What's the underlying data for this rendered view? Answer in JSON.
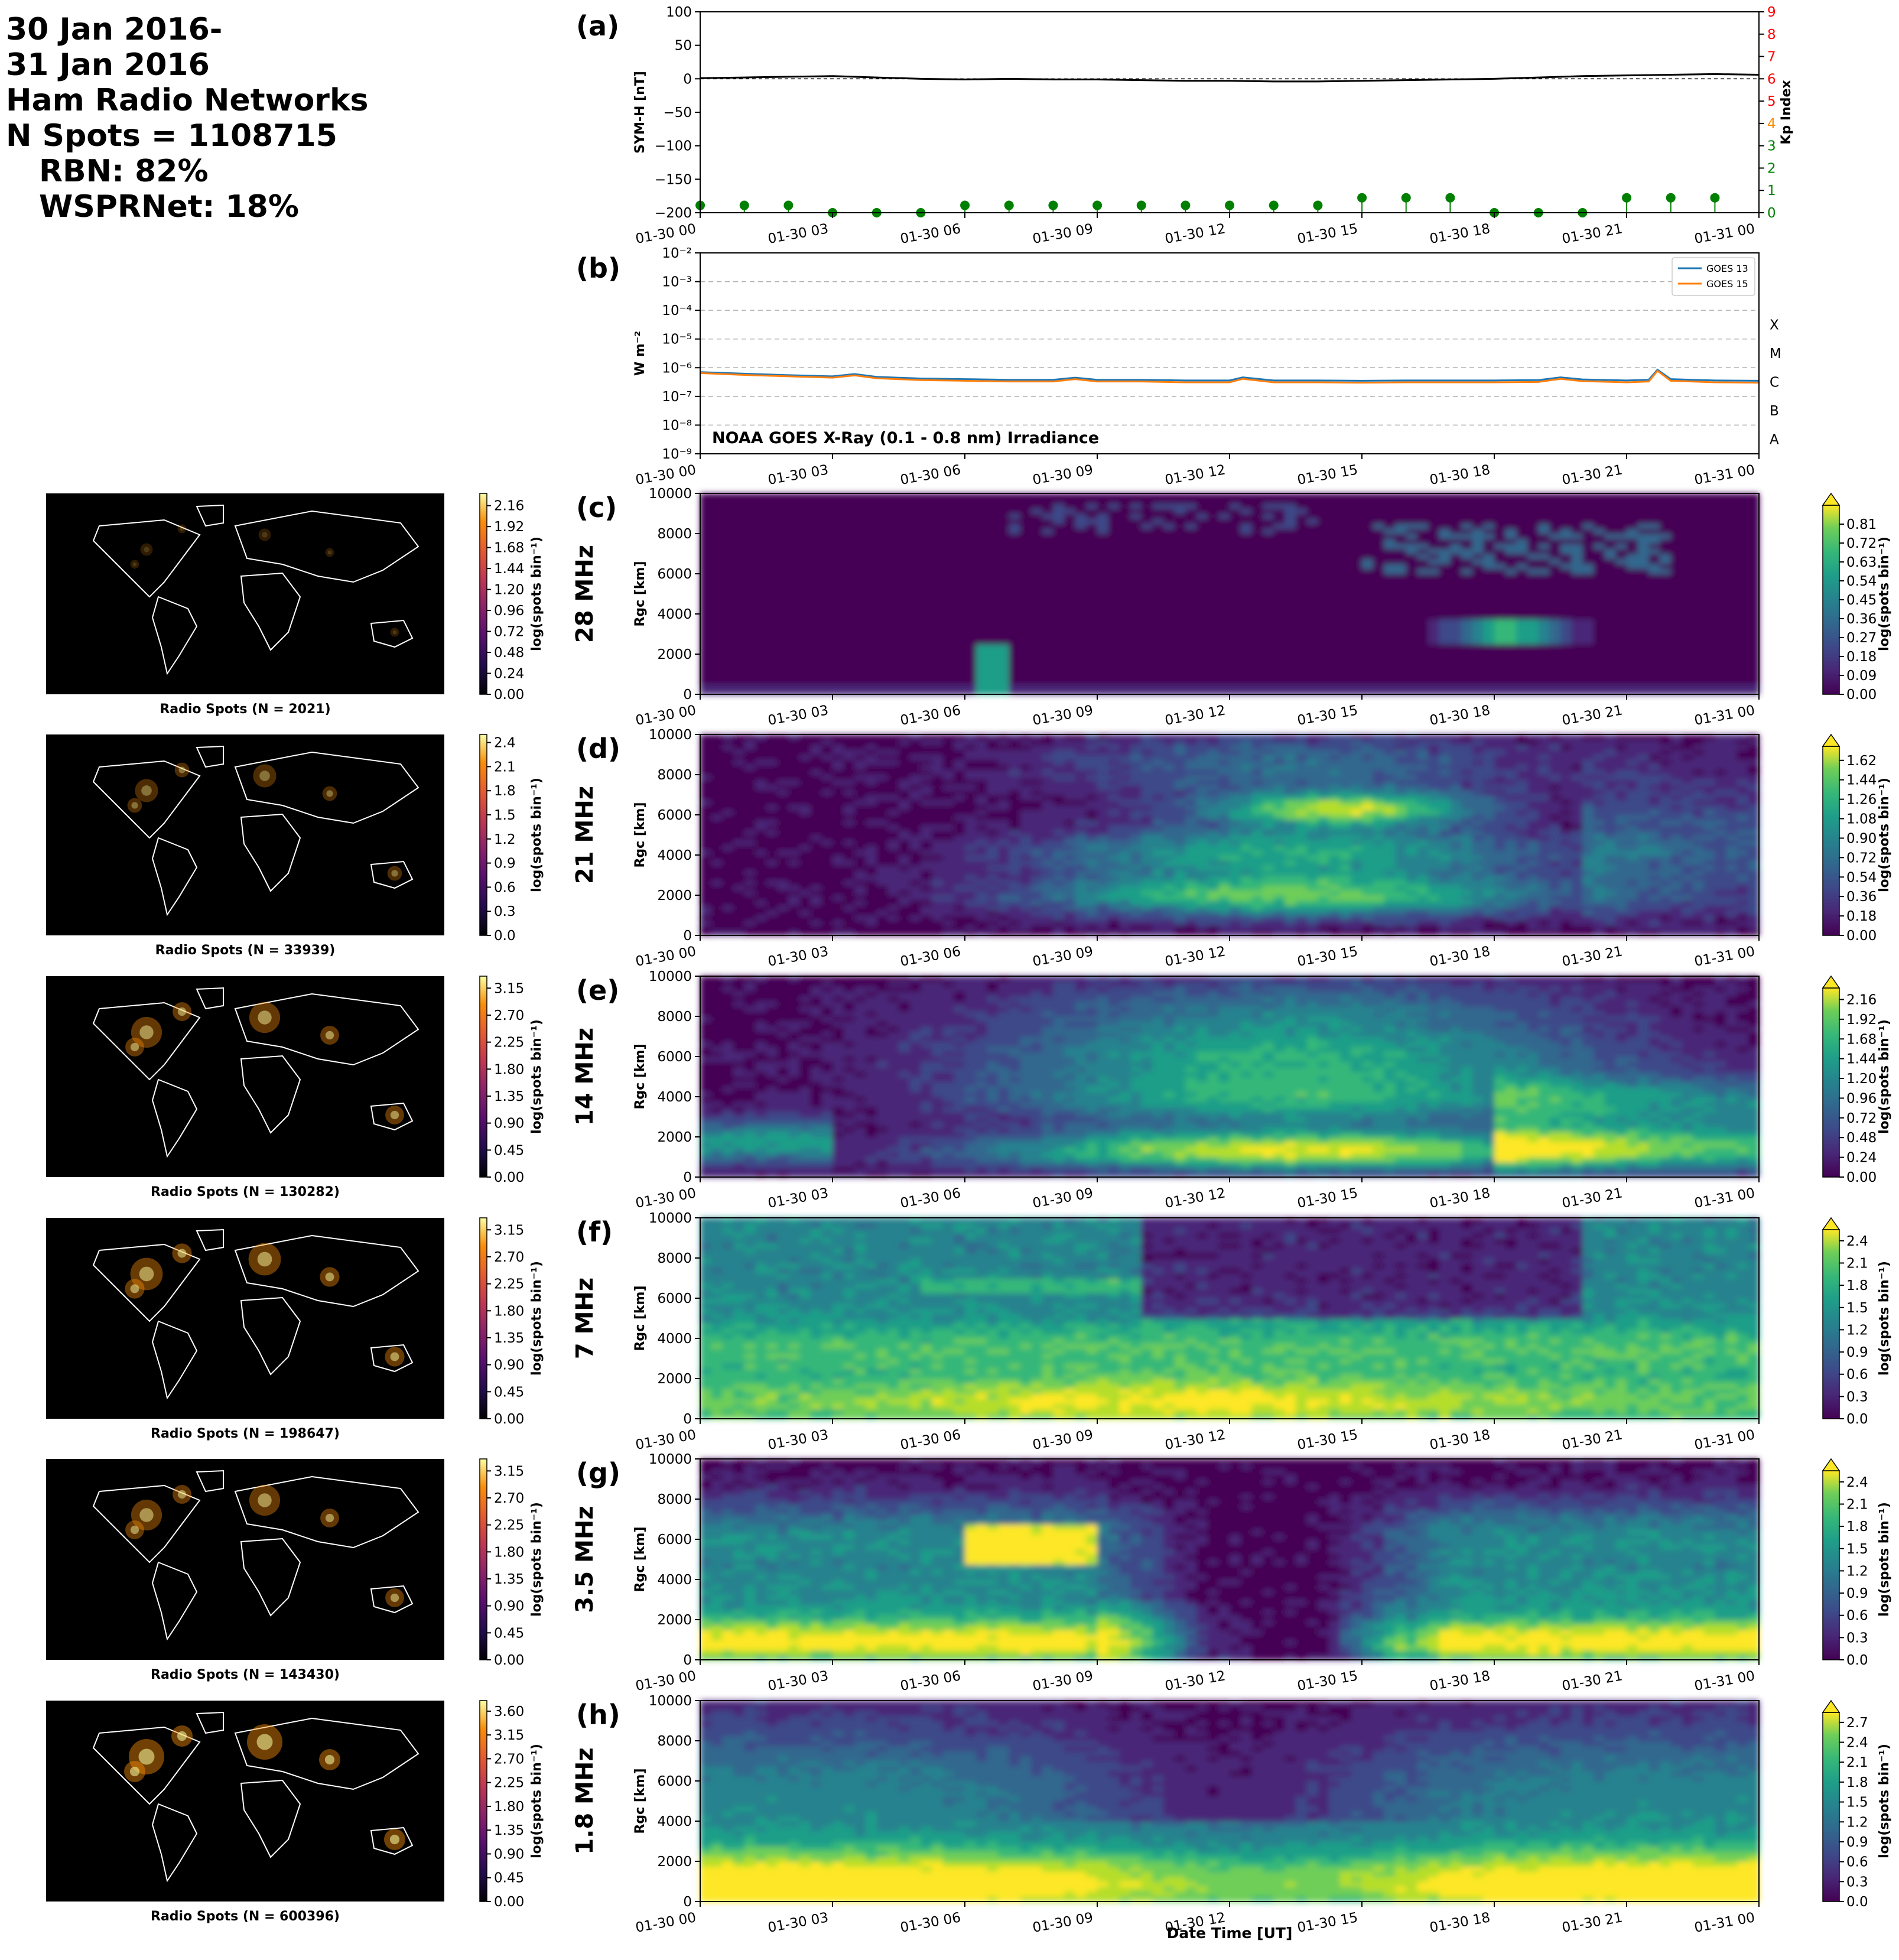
{
  "header": {
    "line1": "30 Jan 2016-",
    "line2": "31 Jan 2016",
    "line3": "Ham Radio Networks",
    "line4": "N Spots = 1108715",
    "line5": "RBN: 82%",
    "line6": "WSPRNet: 18%"
  },
  "time_ticks": [
    "01-30 00",
    "01-30 03",
    "01-30 06",
    "01-30 09",
    "01-30 12",
    "01-30 15",
    "01-30 18",
    "01-30 21",
    "01-31 00"
  ],
  "xlabel": "Date Time [UT]",
  "chart_data": [
    {
      "type": "line",
      "panel": "(a)",
      "ylabel": "SYM-H [nT]",
      "y2label": "Kp Index",
      "ylim": [
        -200,
        100
      ],
      "yticks": [
        -200,
        -150,
        -100,
        -50,
        0,
        50,
        100
      ],
      "y2lim": [
        0,
        9
      ],
      "y2ticks": [
        0,
        1,
        2,
        3,
        4,
        5,
        6,
        7,
        8,
        9
      ],
      "y2tick_colors": [
        "#008000",
        "#008000",
        "#008000",
        "#008000",
        "#ff8c00",
        "#ff0000",
        "#ff0000",
        "#ff0000",
        "#ff0000",
        "#ff0000"
      ],
      "symh": {
        "x": [
          0,
          1,
          2,
          3,
          4,
          5,
          6,
          7,
          8,
          9,
          10,
          11,
          12,
          13,
          14,
          15,
          16,
          17,
          18,
          19,
          20,
          21,
          22,
          23,
          24
        ],
        "values": [
          1,
          2,
          3,
          4,
          2,
          0,
          -1,
          0,
          -1,
          -1,
          -2,
          -3,
          -3,
          -4,
          -4,
          -3,
          -2,
          -1,
          0,
          2,
          4,
          5,
          6,
          7,
          6
        ]
      },
      "kp": {
        "x": [
          0,
          1,
          2,
          3,
          4,
          5,
          6,
          7,
          8,
          9,
          10,
          11,
          12,
          13,
          14,
          15,
          16,
          17,
          18,
          19,
          20,
          21,
          22,
          23
        ],
        "values": [
          0.33,
          0.33,
          0.33,
          0,
          0,
          0,
          0.33,
          0.33,
          0.33,
          0.33,
          0.33,
          0.33,
          0.33,
          0.33,
          0.33,
          0.67,
          0.67,
          0.67,
          0,
          0,
          0,
          0.67,
          0.67,
          0.67
        ]
      },
      "colors": {
        "symh": "#000000",
        "kp": "#008000"
      }
    },
    {
      "type": "line",
      "panel": "(b)",
      "ylabel": "W m⁻²",
      "yscale": "log",
      "ylim": [
        1e-09,
        0.01
      ],
      "ytick_labels": [
        "10⁻⁹",
        "10⁻⁸",
        "10⁻⁷",
        "10⁻⁶",
        "10⁻⁵",
        "10⁻⁴",
        "10⁻³",
        "10⁻²"
      ],
      "flare_classes": [
        "A",
        "B",
        "C",
        "M",
        "X"
      ],
      "annotation": "NOAA GOES X-Ray (0.1 - 0.8 nm) Irradiance",
      "legend": "top-right",
      "series": [
        {
          "name": "GOES 13",
          "color": "#1f77b4",
          "x": [
            0,
            1,
            2,
            3,
            3.5,
            4,
            5,
            6,
            7,
            8,
            8.5,
            9,
            10,
            11,
            12,
            12.3,
            13,
            14,
            15,
            16,
            17,
            18,
            19,
            19.5,
            20,
            21,
            21.5,
            21.7,
            22,
            23,
            24
          ],
          "values": [
            7e-07,
            6.2e-07,
            5.5e-07,
            5e-07,
            6e-07,
            4.8e-07,
            4.2e-07,
            4e-07,
            3.8e-07,
            3.8e-07,
            4.5e-07,
            3.8e-07,
            3.8e-07,
            3.6e-07,
            3.6e-07,
            4.6e-07,
            3.6e-07,
            3.6e-07,
            3.5e-07,
            3.6e-07,
            3.6e-07,
            3.6e-07,
            3.7e-07,
            4.6e-07,
            3.9e-07,
            3.6e-07,
            3.8e-07,
            8.5e-07,
            4e-07,
            3.6e-07,
            3.5e-07
          ]
        },
        {
          "name": "GOES 15",
          "color": "#ff7f0e",
          "x": [
            0,
            1,
            2,
            3,
            3.5,
            4,
            5,
            6,
            7,
            8,
            8.5,
            9,
            10,
            11,
            12,
            12.3,
            13,
            14,
            15,
            16,
            17,
            18,
            19,
            19.5,
            20,
            21,
            21.5,
            21.7,
            22,
            23,
            24
          ],
          "values": [
            6.5e-07,
            5.6e-07,
            5e-07,
            4.5e-07,
            5.4e-07,
            4.3e-07,
            3.7e-07,
            3.5e-07,
            3.3e-07,
            3.3e-07,
            4e-07,
            3.3e-07,
            3.3e-07,
            3.1e-07,
            3.1e-07,
            4.1e-07,
            3.1e-07,
            3.1e-07,
            3e-07,
            3.1e-07,
            3.1e-07,
            3.1e-07,
            3.2e-07,
            4.1e-07,
            3.4e-07,
            3.1e-07,
            3.3e-07,
            7.8e-07,
            3.5e-07,
            3.1e-07,
            3e-07
          ]
        }
      ]
    },
    {
      "type": "heatmap",
      "panel": "(c)",
      "band": "28 MHz",
      "ylabel": "Rgc [km]",
      "ylim": [
        0,
        10000
      ],
      "yticks": [
        0,
        2000,
        4000,
        6000,
        8000,
        10000
      ],
      "cbar_ticks": [
        "0.00",
        "0.09",
        "0.18",
        "0.27",
        "0.36",
        "0.45",
        "0.54",
        "0.63",
        "0.72",
        "0.81"
      ],
      "cbar_label": "log(spots bin⁻¹)",
      "cbar_max": 0.9,
      "map_caption": "Radio Spots (N = 2021)",
      "map_cbar_ticks": [
        "0.00",
        "0.24",
        "0.48",
        "0.72",
        "0.96",
        "1.20",
        "1.44",
        "1.68",
        "1.92",
        "2.16"
      ],
      "map_cbar_label": "log(spots bin⁻¹)",
      "map_cbar_max": 2.3,
      "profile": "p28"
    },
    {
      "type": "heatmap",
      "panel": "(d)",
      "band": "21 MHz",
      "ylabel": "Rgc [km]",
      "ylim": [
        0,
        10000
      ],
      "yticks": [
        0,
        2000,
        4000,
        6000,
        8000,
        10000
      ],
      "cbar_ticks": [
        "0.00",
        "0.18",
        "0.36",
        "0.54",
        "0.72",
        "0.90",
        "1.08",
        "1.26",
        "1.44",
        "1.62"
      ],
      "cbar_label": "log(spots bin⁻¹)",
      "cbar_max": 1.75,
      "map_caption": "Radio Spots (N = 33939)",
      "map_cbar_ticks": [
        "0.0",
        "0.3",
        "0.6",
        "0.9",
        "1.2",
        "1.5",
        "1.8",
        "2.1",
        "2.4"
      ],
      "map_cbar_label": "log(spots bin⁻¹)",
      "map_cbar_max": 2.5,
      "profile": "p21"
    },
    {
      "type": "heatmap",
      "panel": "(e)",
      "band": "14 MHz",
      "ylabel": "Rgc [km]",
      "ylim": [
        0,
        10000
      ],
      "yticks": [
        0,
        2000,
        4000,
        6000,
        8000,
        10000
      ],
      "cbar_ticks": [
        "0.00",
        "0.24",
        "0.48",
        "0.72",
        "0.96",
        "1.20",
        "1.44",
        "1.68",
        "1.92",
        "2.16"
      ],
      "cbar_label": "log(spots bin⁻¹)",
      "cbar_max": 2.3,
      "map_caption": "Radio Spots (N = 130282)",
      "map_cbar_ticks": [
        "0.00",
        "0.45",
        "0.90",
        "1.35",
        "1.80",
        "2.25",
        "2.70",
        "3.15"
      ],
      "map_cbar_label": "log(spots bin⁻¹)",
      "map_cbar_max": 3.35,
      "profile": "p14"
    },
    {
      "type": "heatmap",
      "panel": "(f)",
      "band": "7 MHz",
      "ylabel": "Rgc [km]",
      "ylim": [
        0,
        10000
      ],
      "yticks": [
        0,
        2000,
        4000,
        6000,
        8000,
        10000
      ],
      "cbar_ticks": [
        "0.0",
        "0.3",
        "0.6",
        "0.9",
        "1.2",
        "1.5",
        "1.8",
        "2.1",
        "2.4"
      ],
      "cbar_label": "log(spots bin⁻¹)",
      "cbar_max": 2.55,
      "map_caption": "Radio Spots (N = 198647)",
      "map_cbar_ticks": [
        "0.00",
        "0.45",
        "0.90",
        "1.35",
        "1.80",
        "2.25",
        "2.70",
        "3.15"
      ],
      "map_cbar_label": "log(spots bin⁻¹)",
      "map_cbar_max": 3.35,
      "profile": "p7"
    },
    {
      "type": "heatmap",
      "panel": "(g)",
      "band": "3.5 MHz",
      "ylabel": "Rgc [km]",
      "ylim": [
        0,
        10000
      ],
      "yticks": [
        0,
        2000,
        4000,
        6000,
        8000,
        10000
      ],
      "cbar_ticks": [
        "0.0",
        "0.3",
        "0.6",
        "0.9",
        "1.2",
        "1.5",
        "1.8",
        "2.1",
        "2.4"
      ],
      "cbar_label": "log(spots bin⁻¹)",
      "cbar_max": 2.55,
      "map_caption": "Radio Spots (N = 143430)",
      "map_cbar_ticks": [
        "0.00",
        "0.45",
        "0.90",
        "1.35",
        "1.80",
        "2.25",
        "2.70",
        "3.15"
      ],
      "map_cbar_label": "log(spots bin⁻¹)",
      "map_cbar_max": 3.35,
      "profile": "p35"
    },
    {
      "type": "heatmap",
      "panel": "(h)",
      "band": "1.8 MHz",
      "ylabel": "Rgc [km]",
      "ylim": [
        0,
        10000
      ],
      "yticks": [
        0,
        2000,
        4000,
        6000,
        8000,
        10000
      ],
      "cbar_ticks": [
        "0.0",
        "0.3",
        "0.6",
        "0.9",
        "1.2",
        "1.5",
        "1.8",
        "2.1",
        "2.4",
        "2.7"
      ],
      "cbar_label": "log(spots bin⁻¹)",
      "cbar_max": 2.85,
      "map_caption": "Radio Spots (N = 600396)",
      "map_cbar_ticks": [
        "0.00",
        "0.45",
        "0.90",
        "1.35",
        "1.80",
        "2.25",
        "2.70",
        "3.15",
        "3.60"
      ],
      "map_cbar_label": "log(spots bin⁻¹)",
      "map_cbar_max": 3.8,
      "profile": "p18"
    }
  ]
}
